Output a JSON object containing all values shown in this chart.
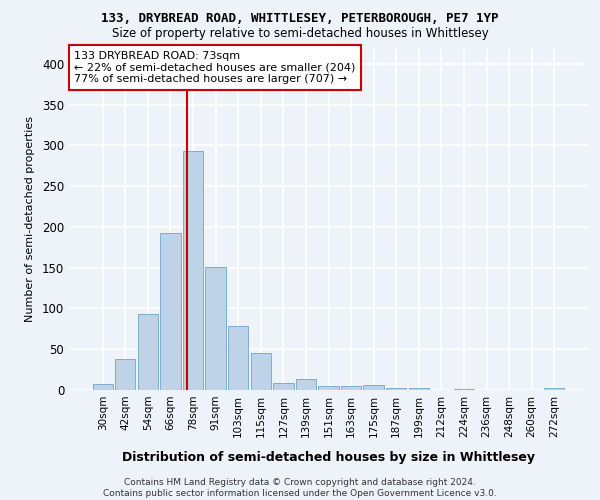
{
  "title_line1": "133, DRYBREAD ROAD, WHITTLESEY, PETERBOROUGH, PE7 1YP",
  "title_line2": "Size of property relative to semi-detached houses in Whittlesey",
  "xlabel": "Distribution of semi-detached houses by size in Whittlesey",
  "ylabel": "Number of semi-detached properties",
  "categories": [
    "30sqm",
    "42sqm",
    "54sqm",
    "66sqm",
    "78sqm",
    "91sqm",
    "103sqm",
    "115sqm",
    "127sqm",
    "139sqm",
    "151sqm",
    "163sqm",
    "175sqm",
    "187sqm",
    "199sqm",
    "212sqm",
    "224sqm",
    "236sqm",
    "248sqm",
    "260sqm",
    "272sqm"
  ],
  "values": [
    7,
    38,
    93,
    192,
    293,
    151,
    79,
    45,
    9,
    13,
    5,
    5,
    6,
    2,
    3,
    0,
    1,
    0,
    0,
    0,
    3
  ],
  "bar_color": "#bed3e8",
  "bar_edge_color": "#7aaed0",
  "vline_color": "#cc0000",
  "vline_x_index": 3.73,
  "annotation_text": "133 DRYBREAD ROAD: 73sqm\n← 22% of semi-detached houses are smaller (204)\n77% of semi-detached houses are larger (707) →",
  "annotation_box_facecolor": "#ffffff",
  "annotation_box_edgecolor": "#cc0000",
  "ylim": [
    0,
    420
  ],
  "yticks": [
    0,
    50,
    100,
    150,
    200,
    250,
    300,
    350,
    400
  ],
  "footer_text": "Contains HM Land Registry data © Crown copyright and database right 2024.\nContains public sector information licensed under the Open Government Licence v3.0.",
  "bg_color": "#eef2f9",
  "grid_color": "#ffffff"
}
